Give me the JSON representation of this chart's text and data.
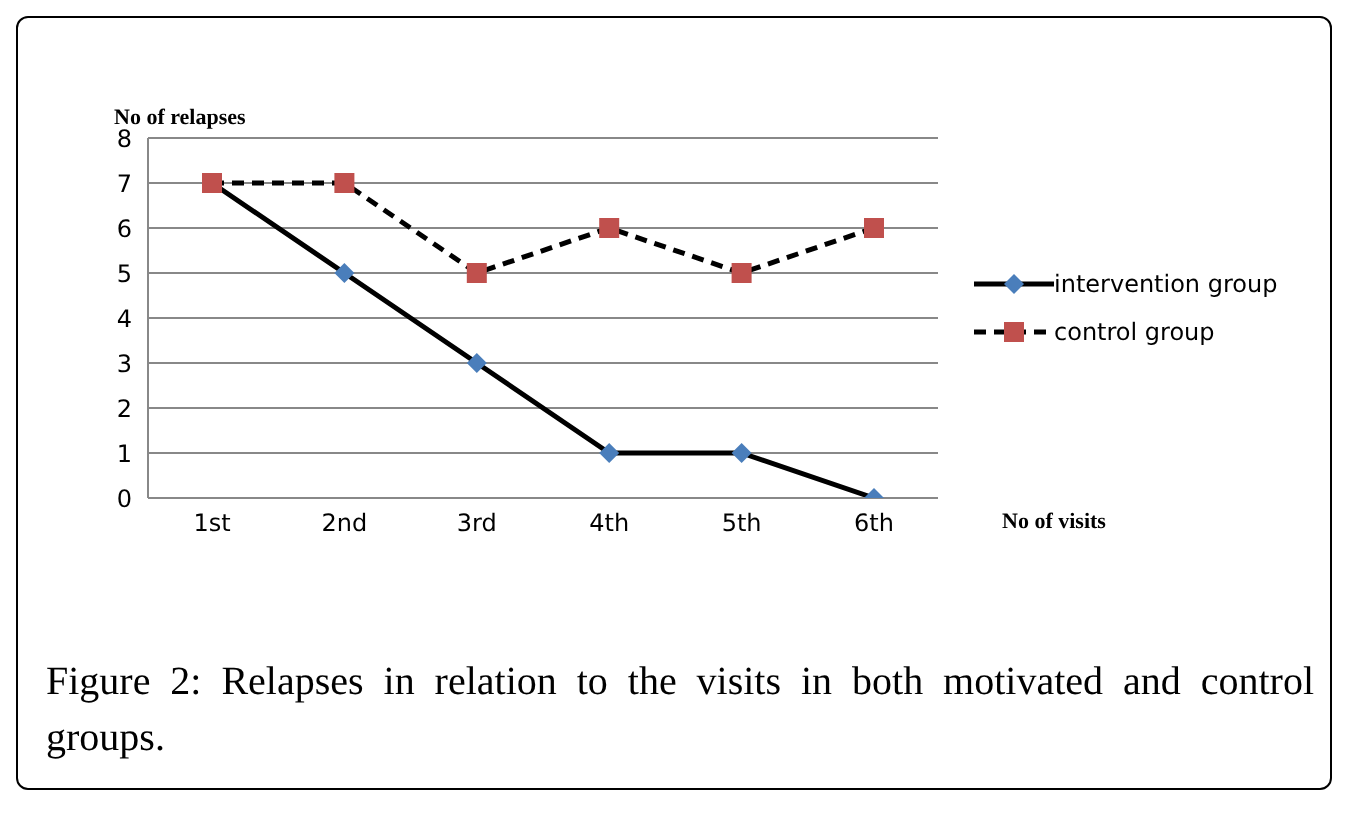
{
  "chart_data": {
    "type": "line",
    "xlabel": "No of visits",
    "ylabel": "No of relapses",
    "categories": [
      "1st",
      "2nd",
      "3rd",
      "4th",
      "5th",
      "6th"
    ],
    "series": [
      {
        "name": "intervention group",
        "color": "#4a7ebb",
        "values": [
          7,
          5,
          3,
          1,
          1,
          0
        ],
        "marker": "diamond",
        "line_style": "solid"
      },
      {
        "name": "control group",
        "color": "#c0504d",
        "values": [
          7,
          7,
          5,
          6,
          5,
          6
        ],
        "marker": "square",
        "line_style": "dashed"
      }
    ],
    "ylim": [
      0,
      8
    ],
    "yticks": [
      0,
      1,
      2,
      3,
      4,
      5,
      6,
      7,
      8
    ],
    "grid": "y",
    "legend": "right",
    "annotations": [
      "Figure 2: Relapses in relation to the visits in both motivated and control groups."
    ]
  }
}
